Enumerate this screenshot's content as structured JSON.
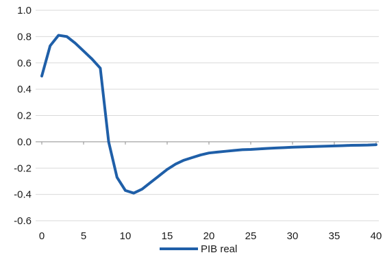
{
  "chart_data": {
    "type": "line",
    "title": "",
    "xlabel": "",
    "ylabel": "",
    "xlim": [
      0,
      40
    ],
    "ylim": [
      -0.6,
      1.0
    ],
    "x_ticks": [
      "0",
      "5",
      "10",
      "15",
      "20",
      "25",
      "30",
      "35",
      "40"
    ],
    "y_ticks": [
      "1.0",
      "0.8",
      "0.6",
      "0.4",
      "0.2",
      "0.0",
      "-0.2",
      "-0.4",
      "-0.6"
    ],
    "grid": "horizontal",
    "legend_position": "bottom-center",
    "series": [
      {
        "name": "PIB real",
        "color": "#1f5fa8",
        "x": [
          0,
          1,
          2,
          3,
          4,
          5,
          6,
          7,
          8,
          9,
          10,
          11,
          12,
          13,
          14,
          15,
          16,
          17,
          18,
          19,
          20,
          21,
          22,
          23,
          24,
          25,
          26,
          27,
          28,
          29,
          30,
          31,
          32,
          33,
          34,
          35,
          36,
          37,
          38,
          39,
          40
        ],
        "y": [
          0.5,
          0.73,
          0.81,
          0.8,
          0.75,
          0.69,
          0.63,
          0.56,
          0.0,
          -0.27,
          -0.37,
          -0.39,
          -0.36,
          -0.31,
          -0.26,
          -0.21,
          -0.17,
          -0.14,
          -0.12,
          -0.1,
          -0.085,
          -0.078,
          -0.072,
          -0.066,
          -0.06,
          -0.058,
          -0.054,
          -0.05,
          -0.047,
          -0.044,
          -0.041,
          -0.039,
          -0.037,
          -0.035,
          -0.033,
          -0.031,
          -0.029,
          -0.027,
          -0.026,
          -0.025,
          -0.022
        ]
      }
    ]
  }
}
